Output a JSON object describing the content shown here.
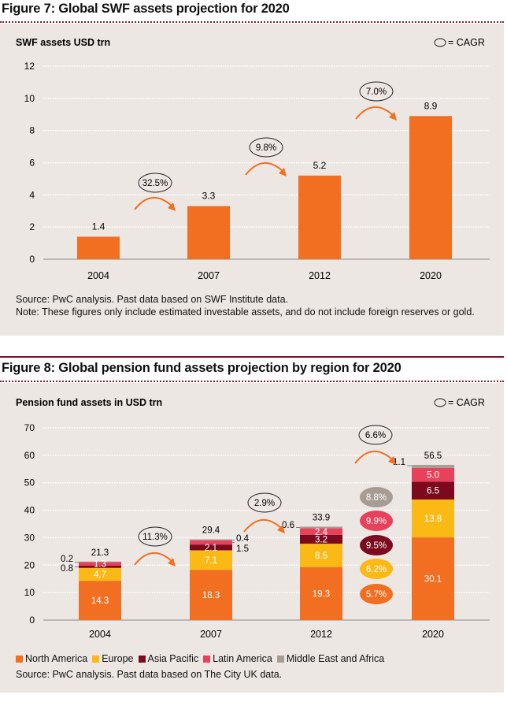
{
  "colors": {
    "north_america": "#f26f21",
    "europe": "#fbb916",
    "asia_pacific": "#7c0a1e",
    "latin_america": "#e8415b",
    "middle_east_africa": "#a69c94",
    "panel": "#ece7e3"
  },
  "chart_data": [
    {
      "type": "bar",
      "title": "Figure 7: Global SWF assets projection for 2020",
      "ylabel": "SWF assets USD trn",
      "ylim": [
        0,
        12
      ],
      "yticks": [
        0,
        2,
        4,
        6,
        8,
        10,
        12
      ],
      "categories": [
        "2004",
        "2007",
        "2012",
        "2020"
      ],
      "values": [
        1.4,
        3.3,
        5.2,
        8.9
      ],
      "value_labels": [
        "1.4",
        "3.3",
        "5.2",
        "8.9"
      ],
      "cagr_key": "= CAGR",
      "cagr": [
        "32.5%",
        "9.8%",
        "7.0%"
      ],
      "grid": true,
      "source": "Source: PwC analysis. Past data based on SWF Institute data.",
      "note": "Note: These figures only include estimated investable assets, and do not include foreign reserves or gold."
    },
    {
      "type": "bar",
      "stacked": true,
      "title": "Figure 8: Global pension fund assets projection by region for 2020",
      "ylabel": "Pension fund assets in USD trn",
      "ylim": [
        0,
        70
      ],
      "yticks": [
        0,
        10,
        20,
        30,
        40,
        50,
        60,
        70
      ],
      "categories": [
        "2004",
        "2007",
        "2012",
        "2020"
      ],
      "series": [
        {
          "name": "North America",
          "values": [
            14.3,
            18.3,
            19.3,
            30.1
          ],
          "cagr": "5.7%"
        },
        {
          "name": "Europe",
          "values": [
            4.7,
            7.1,
            8.5,
            13.8
          ],
          "cagr": "6.2%"
        },
        {
          "name": "Asia Pacific",
          "values": [
            0.8,
            2.1,
            3.2,
            6.5
          ],
          "cagr": "9.5%"
        },
        {
          "name": "Latin America",
          "values": [
            1.3,
            1.5,
            2.4,
            5.0
          ],
          "cagr": "9.9%"
        },
        {
          "name": "Middle East and Africa",
          "values": [
            0.2,
            0.4,
            0.6,
            1.1
          ],
          "cagr": "8.8%"
        }
      ],
      "totals": [
        "21.3",
        "29.4",
        "33.9",
        "56.5"
      ],
      "cagr_key": "= CAGR",
      "cagr": [
        "11.3%",
        "2.9%",
        "6.6%"
      ],
      "grid": true,
      "legend": "bottom-left",
      "source": "Source: PwC analysis. Past data based on The City UK data."
    }
  ]
}
